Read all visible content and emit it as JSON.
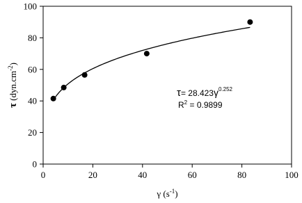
{
  "chart_data": {
    "type": "scatter",
    "x": [
      4.1,
      8.3,
      16.7,
      41.7,
      83.3
    ],
    "values": [
      41.5,
      48.5,
      56.5,
      70,
      90
    ],
    "color": "#000000",
    "xlim": [
      0,
      100
    ],
    "xticks": [
      0,
      20,
      40,
      60,
      80,
      100
    ],
    "ylim": [
      0,
      100
    ],
    "yticks": [
      0,
      20,
      40,
      60,
      80,
      100
    ],
    "grid": false,
    "x_label": {
      "text": "γ (s",
      "sup": "-1",
      "end": ")"
    },
    "y_label": {
      "symbol": "τ",
      "text": " (dyn.cm",
      "sup": "-2",
      "end": ")"
    },
    "fit": {
      "type": "power",
      "lhs": "τ",
      "eq": "= ",
      "coefficient": 28.423,
      "variable": "γ",
      "exponent": 0.252,
      "r2_label": "R",
      "r2_sup": "2",
      "r2_eq": " = ",
      "r_squared": 0.9899
    }
  }
}
